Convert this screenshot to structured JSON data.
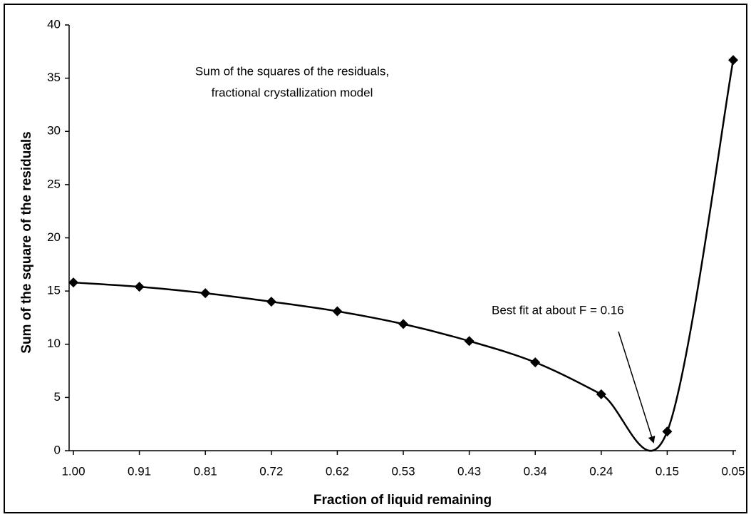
{
  "chart_data": {
    "type": "line",
    "title": [
      "Sum of the squares of the residuals,",
      "fractional crystallization model"
    ],
    "annotation": "Best fit at about F = 0.16",
    "x_label": "Fraction of liquid remaining",
    "y_label": "Sum of the square of the residuals",
    "categories": [
      "1.00",
      "0.91",
      "0.81",
      "0.72",
      "0.62",
      "0.53",
      "0.43",
      "0.34",
      "0.24",
      "0.15",
      "0.05"
    ],
    "series": [
      {
        "name": "Sum of the squares of the residuals",
        "color": "#000000",
        "values": [
          15.8,
          15.4,
          14.8,
          14.0,
          13.1,
          11.9,
          10.3,
          8.3,
          5.3,
          1.8,
          36.7
        ]
      }
    ],
    "ylim": [
      0,
      40
    ],
    "yticks": [
      0,
      5,
      10,
      15,
      20,
      25,
      30,
      35,
      40
    ],
    "grid": false,
    "smooth": true
  }
}
